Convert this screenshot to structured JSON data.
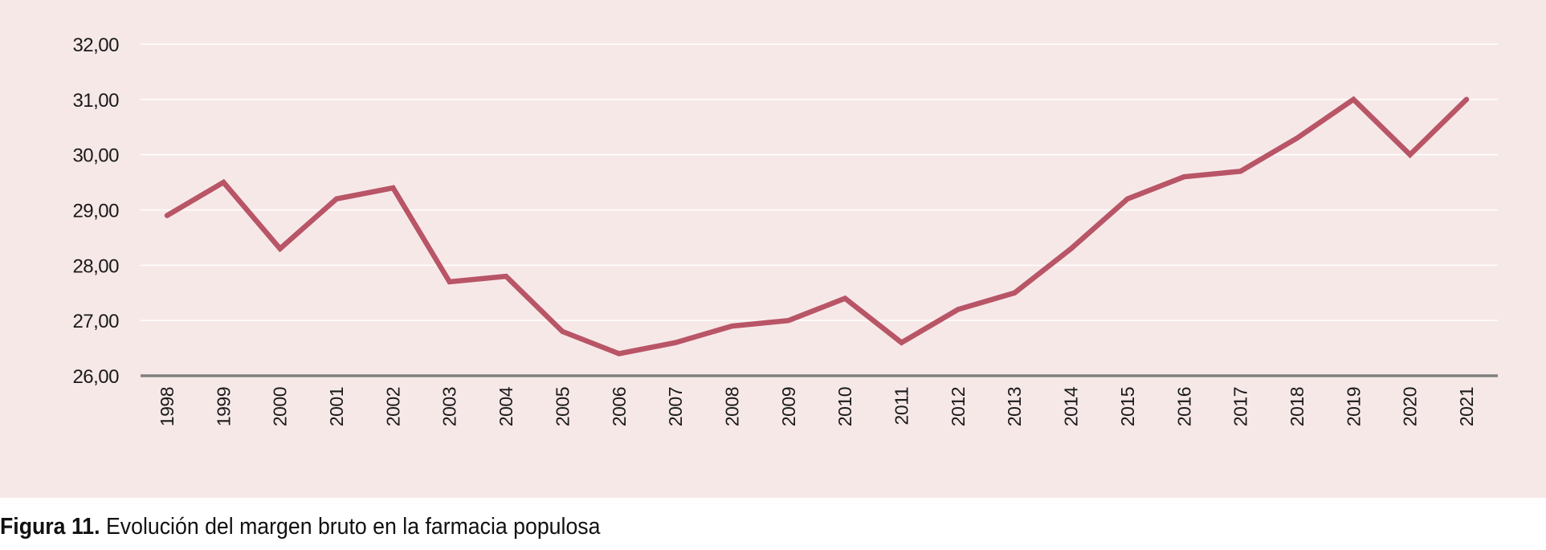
{
  "chart_data": {
    "type": "line",
    "title": "",
    "xlabel": "",
    "ylabel": "",
    "x": [
      "1998",
      "1999",
      "2000",
      "2001",
      "2002",
      "2003",
      "2004",
      "2005",
      "2006",
      "2007",
      "2008",
      "2009",
      "2010",
      "2011",
      "2012",
      "2013",
      "2014",
      "2015",
      "2016",
      "2017",
      "2018",
      "2019",
      "2020",
      "2021"
    ],
    "series": [
      {
        "values": [
          28.9,
          29.5,
          28.3,
          29.2,
          29.4,
          27.7,
          27.8,
          26.8,
          26.4,
          26.6,
          26.9,
          27.0,
          27.4,
          26.6,
          27.2,
          27.5,
          28.3,
          29.2,
          29.6,
          29.7,
          30.3,
          31.0,
          30.0,
          31.0
        ],
        "color": "#b85566"
      }
    ],
    "ylim": [
      26,
      32
    ],
    "yticks": [
      "26,00",
      "27,00",
      "28,00",
      "29,00",
      "30,00",
      "31,00",
      "32,00"
    ],
    "grid": true,
    "gridColor": "#ffffff",
    "axisColor": "#808080",
    "background": "#f7e8e8"
  },
  "caption": {
    "label": "Figura 11.",
    "text": " Evolución del margen bruto en la farmacia populosa"
  }
}
